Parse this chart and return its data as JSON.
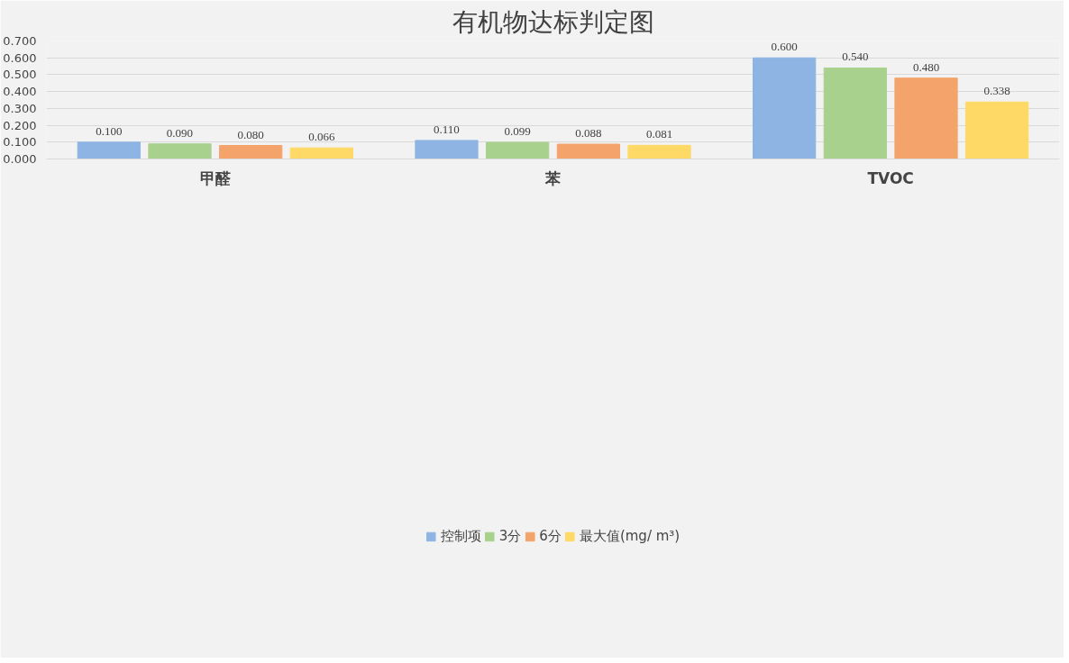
{
  "chart_data": {
    "type": "bar",
    "title": "有机物达标判定图",
    "categories": [
      "甲醛",
      "苯",
      "TVOC"
    ],
    "series": [
      {
        "name": "控制项",
        "color": "#8db4e2",
        "values": [
          0.1,
          0.11,
          0.6
        ],
        "value_labels": [
          "0.100",
          "0.110",
          "0.600"
        ]
      },
      {
        "name": "3分",
        "color": "#a9d18e",
        "values": [
          0.09,
          0.099,
          0.54
        ],
        "value_labels": [
          "0.090",
          "0.099",
          "0.540"
        ]
      },
      {
        "name": "6分",
        "color": "#f4a46a",
        "values": [
          0.08,
          0.088,
          0.48
        ],
        "value_labels": [
          "0.080",
          "0.088",
          "0.480"
        ]
      },
      {
        "name": "最大值(mg/ m³)",
        "color": "#ffd966",
        "values": [
          0.066,
          0.081,
          0.338
        ],
        "value_labels": [
          "0.066",
          "0.081",
          "0.338"
        ]
      }
    ],
    "ylim": [
      0,
      0.7
    ],
    "yticks": [
      {
        "value": 0,
        "label": "0.000"
      },
      {
        "value": 0.1,
        "label": "0.100"
      },
      {
        "value": 0.2,
        "label": "0.200"
      },
      {
        "value": 0.3,
        "label": "0.300"
      },
      {
        "value": 0.4,
        "label": "0.400"
      },
      {
        "value": 0.5,
        "label": "0.500"
      },
      {
        "value": 0.6,
        "label": "0.600"
      },
      {
        "value": 0.7,
        "label": "0.700"
      }
    ],
    "grid": "y",
    "legend": "bottom"
  }
}
